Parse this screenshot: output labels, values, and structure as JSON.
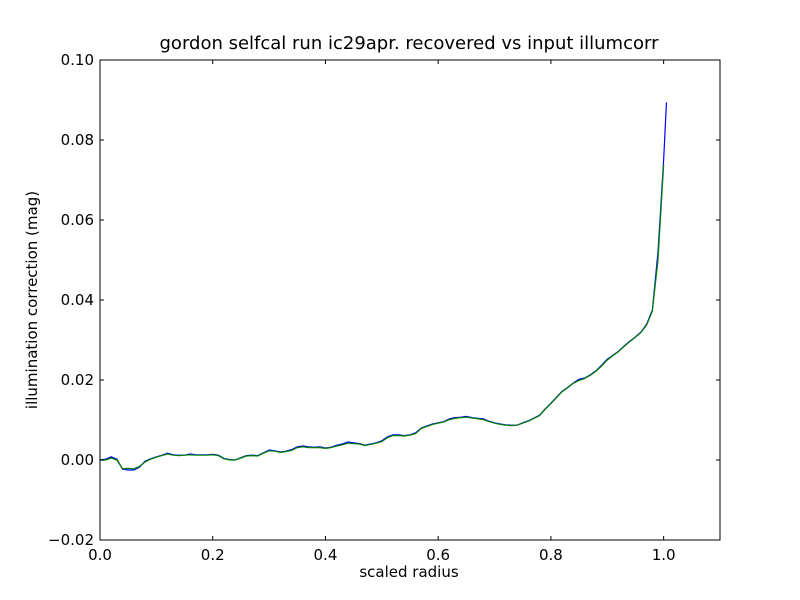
{
  "chart_data": {
    "type": "line",
    "title": "gordon selfcal run ic29apr.  recovered vs input illumcorr",
    "xlabel": "scaled radius",
    "ylabel": "illumination correction (mag)",
    "xlim": [
      0.0,
      1.1
    ],
    "ylim": [
      -0.02,
      0.1
    ],
    "xticks": [
      0.0,
      0.2,
      0.4,
      0.6,
      0.8,
      1.0
    ],
    "yticks": [
      -0.02,
      0.0,
      0.02,
      0.04,
      0.06,
      0.08,
      0.1
    ],
    "xtick_labels": [
      "0.0",
      "0.2",
      "0.4",
      "0.6",
      "0.8",
      "1.0"
    ],
    "ytick_labels": [
      "−0.02",
      "0.00",
      "0.02",
      "0.04",
      "0.06",
      "0.08",
      "0.10"
    ],
    "grid": false,
    "legend": "none",
    "series": [
      {
        "color": "#0000ff",
        "x": [
          0.0,
          0.01,
          0.02,
          0.03,
          0.04,
          0.05,
          0.06,
          0.07,
          0.08,
          0.09,
          0.1,
          0.11,
          0.12,
          0.13,
          0.14,
          0.15,
          0.16,
          0.17,
          0.18,
          0.19,
          0.2,
          0.21,
          0.22,
          0.23,
          0.24,
          0.25,
          0.26,
          0.27,
          0.28,
          0.29,
          0.3,
          0.31,
          0.32,
          0.33,
          0.34,
          0.35,
          0.36,
          0.37,
          0.38,
          0.39,
          0.4,
          0.41,
          0.42,
          0.43,
          0.44,
          0.45,
          0.46,
          0.47,
          0.48,
          0.49,
          0.5,
          0.51,
          0.52,
          0.53,
          0.54,
          0.55,
          0.56,
          0.57,
          0.58,
          0.59,
          0.6,
          0.61,
          0.62,
          0.63,
          0.64,
          0.65,
          0.66,
          0.67,
          0.68,
          0.69,
          0.7,
          0.71,
          0.72,
          0.73,
          0.74,
          0.75,
          0.76,
          0.77,
          0.78,
          0.79,
          0.8,
          0.81,
          0.82,
          0.83,
          0.84,
          0.85,
          0.86,
          0.87,
          0.88,
          0.89,
          0.9,
          0.91,
          0.92,
          0.93,
          0.94,
          0.95,
          0.96,
          0.97,
          0.98,
          0.99,
          1.0,
          1.005
        ],
        "y": [
          0.0,
          0.0002,
          0.0008,
          0.0002,
          -0.0023,
          -0.0025,
          -0.0025,
          -0.0018,
          -0.0003,
          0.0003,
          0.0008,
          0.0012,
          0.0017,
          0.0013,
          0.0012,
          0.0012,
          0.0015,
          0.0013,
          0.0013,
          0.0013,
          0.0014,
          0.0012,
          0.0004,
          0.0001,
          0.0,
          0.0006,
          0.0011,
          0.0012,
          0.0011,
          0.0018,
          0.0025,
          0.0023,
          0.002,
          0.0022,
          0.0026,
          0.0033,
          0.0035,
          0.0033,
          0.0032,
          0.0033,
          0.003,
          0.0032,
          0.0037,
          0.004,
          0.0045,
          0.0043,
          0.0041,
          0.0037,
          0.004,
          0.0043,
          0.0048,
          0.0058,
          0.0063,
          0.0063,
          0.0061,
          0.0063,
          0.0068,
          0.008,
          0.0085,
          0.009,
          0.0093,
          0.0096,
          0.0103,
          0.0106,
          0.0107,
          0.0109,
          0.0106,
          0.0104,
          0.0103,
          0.0097,
          0.0093,
          0.009,
          0.0088,
          0.0087,
          0.0087,
          0.0093,
          0.0098,
          0.0105,
          0.0112,
          0.0128,
          0.0142,
          0.0157,
          0.0172,
          0.0182,
          0.0193,
          0.0202,
          0.0205,
          0.0213,
          0.0223,
          0.0237,
          0.0252,
          0.0262,
          0.0272,
          0.0285,
          0.0297,
          0.0308,
          0.032,
          0.034,
          0.0375,
          0.052,
          0.075,
          0.0893
        ]
      },
      {
        "color": "#008000",
        "x": [
          0.0,
          0.01,
          0.02,
          0.03,
          0.04,
          0.05,
          0.06,
          0.07,
          0.08,
          0.09,
          0.1,
          0.11,
          0.12,
          0.13,
          0.14,
          0.15,
          0.16,
          0.17,
          0.18,
          0.19,
          0.2,
          0.21,
          0.22,
          0.23,
          0.24,
          0.25,
          0.26,
          0.27,
          0.28,
          0.29,
          0.3,
          0.31,
          0.32,
          0.33,
          0.34,
          0.35,
          0.36,
          0.37,
          0.38,
          0.39,
          0.4,
          0.41,
          0.42,
          0.43,
          0.44,
          0.45,
          0.46,
          0.47,
          0.48,
          0.49,
          0.5,
          0.51,
          0.52,
          0.53,
          0.54,
          0.55,
          0.56,
          0.57,
          0.58,
          0.59,
          0.6,
          0.61,
          0.62,
          0.63,
          0.64,
          0.65,
          0.66,
          0.67,
          0.68,
          0.69,
          0.7,
          0.71,
          0.72,
          0.73,
          0.74,
          0.75,
          0.76,
          0.77,
          0.78,
          0.79,
          0.8,
          0.81,
          0.82,
          0.83,
          0.84,
          0.85,
          0.86,
          0.87,
          0.88,
          0.89,
          0.9,
          0.91,
          0.92,
          0.93,
          0.94,
          0.95,
          0.96,
          0.97,
          0.98,
          0.99,
          1.0
        ],
        "y": [
          0.0,
          0.0,
          0.0005,
          0.0,
          -0.0022,
          -0.0021,
          -0.0022,
          -0.0016,
          -0.0005,
          0.0002,
          0.0007,
          0.0011,
          0.0015,
          0.0012,
          0.0011,
          0.0012,
          0.0013,
          0.0012,
          0.0012,
          0.0012,
          0.0013,
          0.0011,
          0.0003,
          0.0,
          0.0,
          0.0005,
          0.001,
          0.0011,
          0.001,
          0.0017,
          0.0023,
          0.0022,
          0.0019,
          0.0021,
          0.0024,
          0.0031,
          0.0033,
          0.0031,
          0.0031,
          0.0031,
          0.0029,
          0.0031,
          0.0035,
          0.0038,
          0.0042,
          0.0041,
          0.004,
          0.0036,
          0.0039,
          0.0042,
          0.0046,
          0.0056,
          0.0061,
          0.0061,
          0.006,
          0.0062,
          0.0066,
          0.0079,
          0.0084,
          0.0089,
          0.0092,
          0.0095,
          0.0101,
          0.0104,
          0.0106,
          0.0107,
          0.0105,
          0.0103,
          0.0101,
          0.0096,
          0.0092,
          0.0089,
          0.0087,
          0.0086,
          0.0087,
          0.0092,
          0.0097,
          0.0104,
          0.0111,
          0.0127,
          0.0141,
          0.0156,
          0.0171,
          0.0181,
          0.0192,
          0.0199,
          0.0204,
          0.0212,
          0.0222,
          0.0235,
          0.025,
          0.0261,
          0.0271,
          0.0284,
          0.0296,
          0.0307,
          0.0319,
          0.0338,
          0.0372,
          0.05,
          0.0738
        ]
      }
    ]
  }
}
